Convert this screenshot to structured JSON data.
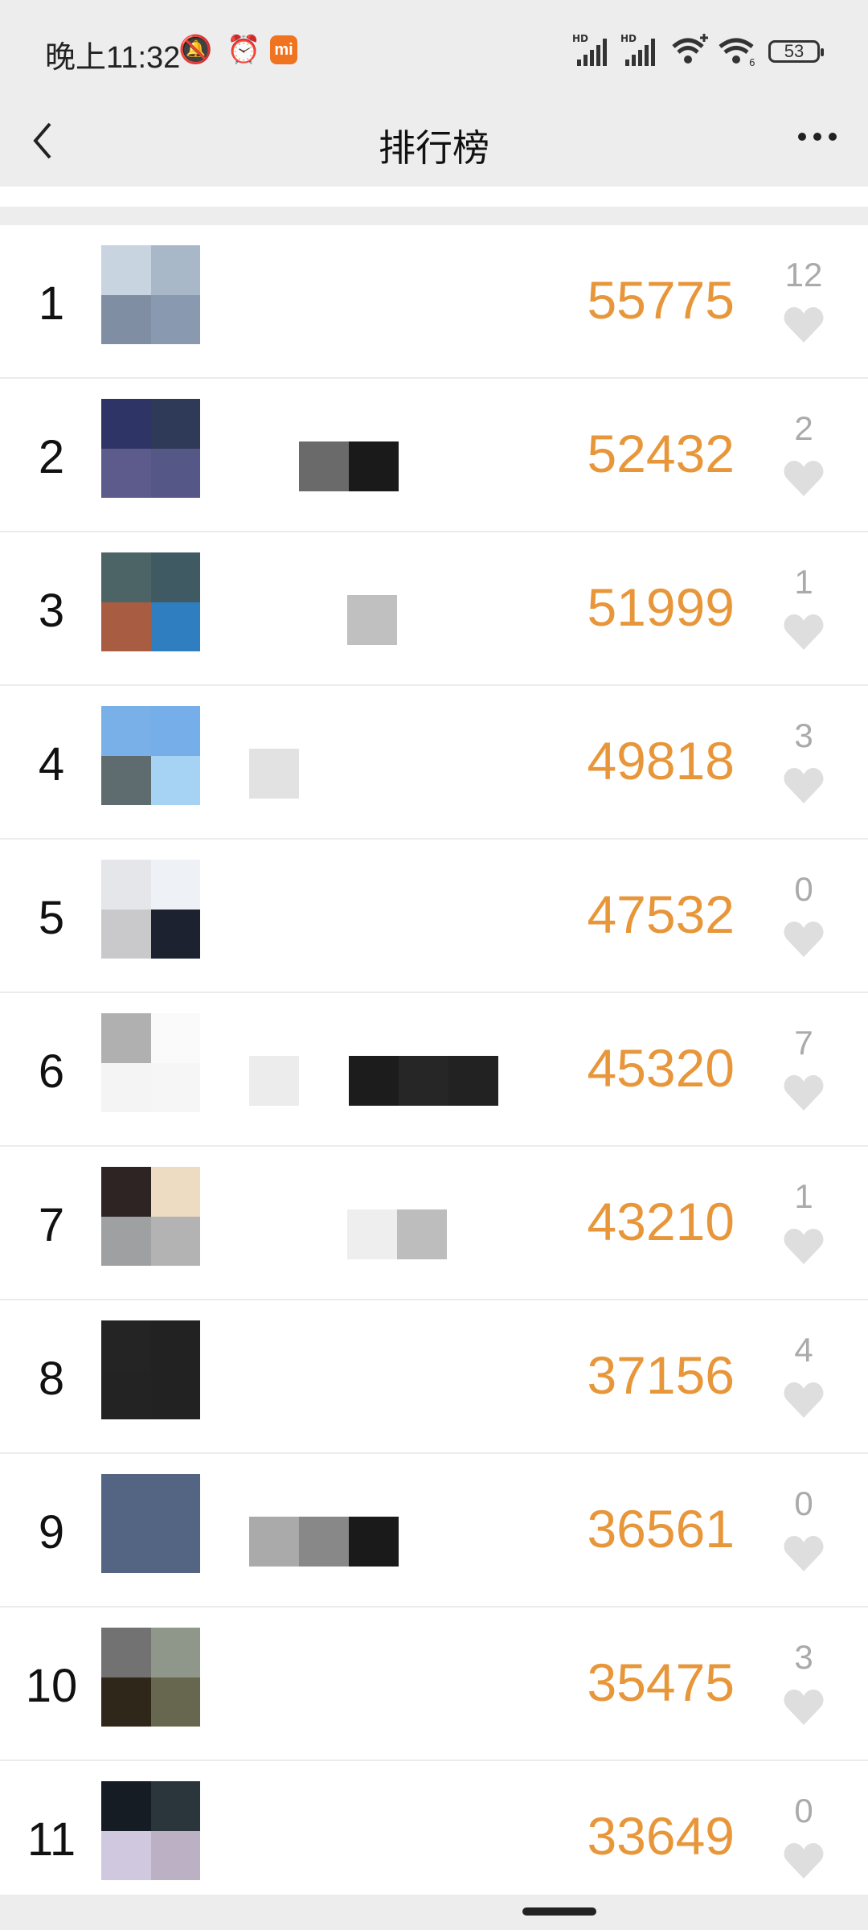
{
  "status_bar": {
    "time": "晚上11:32",
    "icons": [
      "mute-icon",
      "alarm-icon",
      "mi-app-icon",
      "signal-hd-1-icon",
      "signal-hd-2-icon",
      "wifi-plus-icon",
      "wifi-6-icon"
    ],
    "mi_label": "mi",
    "battery": "53"
  },
  "header": {
    "title": "排行榜",
    "back_icon": "chevron-left-icon",
    "more_icon": "more-dots-icon"
  },
  "colors": {
    "score": "#e8963a",
    "likes": "#aaaaaa",
    "heart": "#dedede"
  },
  "rows": [
    {
      "rank": "1",
      "score": "55775",
      "likes": "12",
      "avatar_colors": [
        "#c8d4e0",
        "#a9b8c8",
        "#7f8ea3",
        "#8899b0"
      ],
      "mosaic": []
    },
    {
      "rank": "2",
      "score": "52432",
      "likes": "2",
      "avatar_colors": [
        "#2e3566",
        "#2e3a58",
        "#5c5b8c",
        "#555887"
      ],
      "mosaic": [
        "#6a6a6a",
        "#1a1a1a"
      ]
    },
    {
      "rank": "3",
      "score": "51999",
      "likes": "1",
      "avatar_colors": [
        "#4c6466",
        "#3f5a63",
        "#a85c42",
        "#2f7ec0"
      ],
      "mosaic": [
        "#c0c0c0"
      ]
    },
    {
      "rank": "4",
      "score": "49818",
      "likes": "3",
      "avatar_colors": [
        "#7ab0e8",
        "#76aeea",
        "#5e6c70",
        "#a6d2f4"
      ],
      "mosaic": [
        "#e2e2e2"
      ]
    },
    {
      "rank": "5",
      "score": "47532",
      "likes": "0",
      "avatar_colors": [
        "#e4e6ea",
        "#eef2f6",
        "#c9c9cc",
        "#1c2230"
      ],
      "mosaic": []
    },
    {
      "rank": "6",
      "score": "45320",
      "likes": "7",
      "avatar_colors": [
        "#b0b0b0",
        "#fafafa",
        "#f4f4f4",
        "#f6f6f6"
      ],
      "mosaic": [
        "#ececec",
        "#ffffff",
        "#1c1c1c",
        "#262626",
        "#222222"
      ]
    },
    {
      "rank": "7",
      "score": "43210",
      "likes": "1",
      "avatar_colors": [
        "#2e2424",
        "#eddcc2",
        "#9fa0a2",
        "#b2b3b2"
      ],
      "mosaic": [
        "#eeeeee",
        "#bdbdbd"
      ]
    },
    {
      "rank": "8",
      "score": "37156",
      "likes": "4",
      "avatar_colors": [
        "#242424",
        "#222222",
        "#232323",
        "#222222"
      ],
      "mosaic": []
    },
    {
      "rank": "9",
      "score": "36561",
      "likes": "0",
      "avatar_colors": [
        "#546483",
        "#546483",
        "#546483",
        "#546483"
      ],
      "mosaic": [
        "#aaaaaa",
        "#888888",
        "#1a1a1a"
      ]
    },
    {
      "rank": "10",
      "score": "35475",
      "likes": "3",
      "avatar_colors": [
        "#727272",
        "#8f978a",
        "#2f271a",
        "#67664f"
      ],
      "mosaic": []
    },
    {
      "rank": "11",
      "score": "33649",
      "likes": "0",
      "avatar_colors": [
        "#161c24",
        "#2b353c",
        "#cfc8de",
        "#bcb0c4"
      ],
      "mosaic": []
    }
  ]
}
